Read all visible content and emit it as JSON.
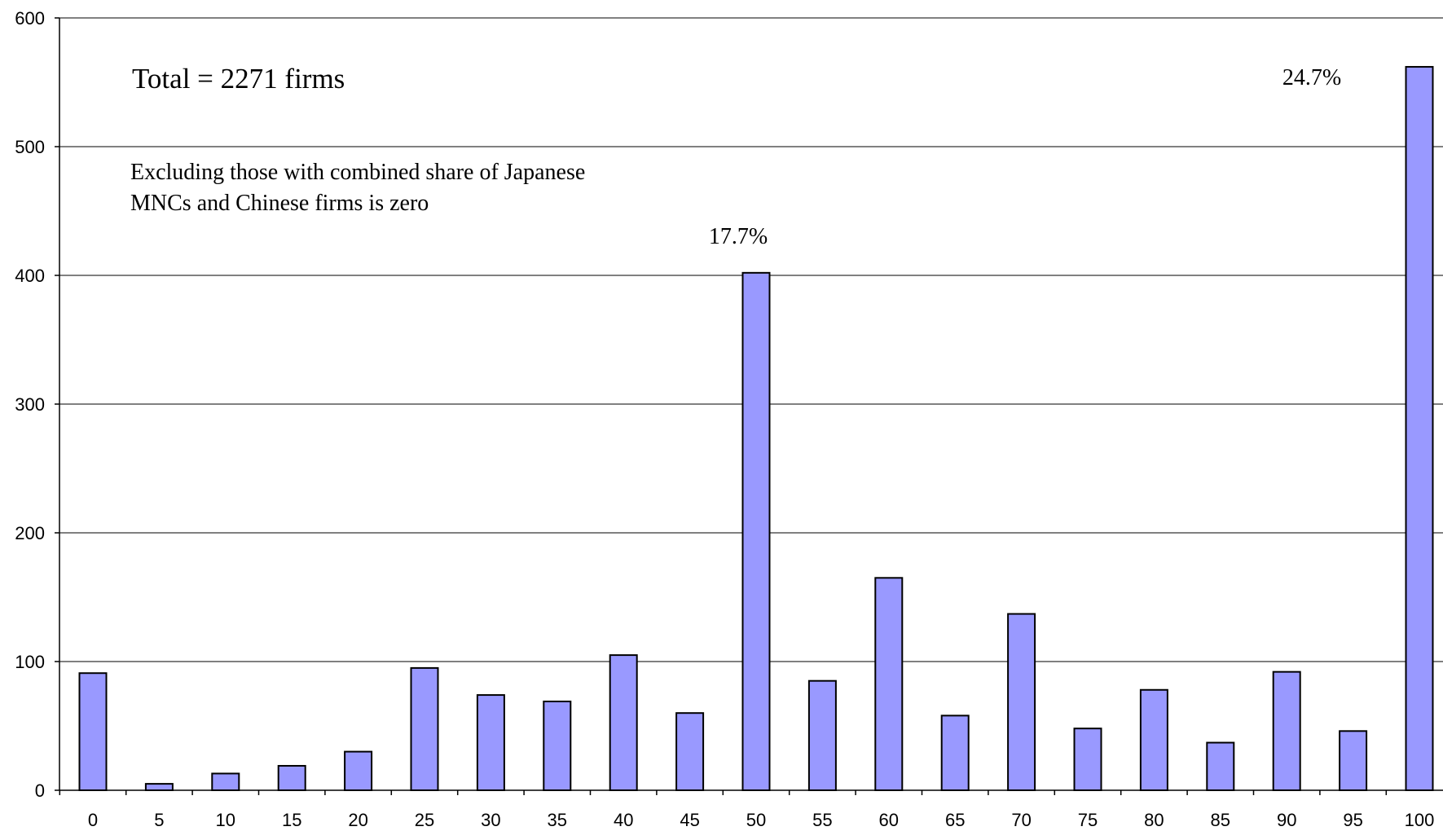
{
  "chart_data": {
    "type": "bar",
    "categories": [
      "0",
      "5",
      "10",
      "15",
      "20",
      "25",
      "30",
      "35",
      "40",
      "45",
      "50",
      "55",
      "60",
      "65",
      "70",
      "75",
      "80",
      "85",
      "90",
      "95",
      "100"
    ],
    "values": [
      91,
      5,
      13,
      19,
      30,
      95,
      74,
      69,
      105,
      60,
      402,
      85,
      165,
      58,
      137,
      48,
      78,
      37,
      92,
      46,
      562
    ],
    "ylim": [
      0,
      600
    ],
    "yticks": [
      "0",
      "100",
      "200",
      "300",
      "400",
      "500",
      "600"
    ],
    "grid": true,
    "bar_color": "#9999ff",
    "annotations": {
      "total": "Total = 2271 firms",
      "note_line1": "Excluding those with combined share of Japanese",
      "note_line2": "MNCs and Chinese firms is zero",
      "label_50": "17.7%",
      "label_100": "24.7%"
    }
  }
}
